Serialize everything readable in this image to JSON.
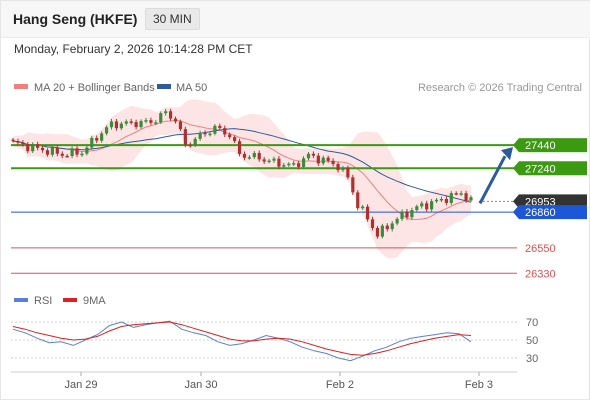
{
  "header": {
    "title": "Hang Seng (HKFE)",
    "timeframe": "30 MIN",
    "timestamp": "Monday, February 2, 2026 10:14:28 PM CET"
  },
  "legend": {
    "items": [
      {
        "label": "MA 20 + Bollinger Bands",
        "color": "#f08080"
      },
      {
        "label": "MA 50",
        "color": "#2e5b9a"
      }
    ],
    "credit": "Research © 2026 Trading Central"
  },
  "rsi_legend": {
    "items": [
      {
        "label": "RSI",
        "color": "#5b7fd6"
      },
      {
        "label": "9MA",
        "color": "#e02020"
      }
    ]
  },
  "chart_data": [
    {
      "type": "candlestick",
      "title": "Hang Seng (HKFE)",
      "y_range_approx": [
        26220,
        27840
      ],
      "x_ticks": [
        "Jan 29",
        "Jan 30",
        "Feb 2",
        "Feb 3"
      ],
      "levels": [
        {
          "value": 27440,
          "label": "27440",
          "kind": "resistance",
          "color": "#3c9a12"
        },
        {
          "value": 27240,
          "label": "27240",
          "kind": "resistance",
          "color": "#3c9a12"
        },
        {
          "value": 26953,
          "label": "26953",
          "kind": "last-price",
          "color": "#333333"
        },
        {
          "value": 26860,
          "label": "26860",
          "kind": "pivot",
          "color": "#1e56d8"
        },
        {
          "value": 26550,
          "label": "26550",
          "kind": "support",
          "color": "#e05050"
        },
        {
          "value": 26330,
          "label": "26330",
          "kind": "support",
          "color": "#e05050"
        }
      ],
      "price_path": [
        {
          "t": 0,
          "p": 27460
        },
        {
          "t": 6,
          "p": 27400
        },
        {
          "t": 10,
          "p": 27360
        },
        {
          "t": 14,
          "p": 27380
        },
        {
          "t": 18,
          "p": 27550
        },
        {
          "t": 20,
          "p": 27620
        },
        {
          "t": 24,
          "p": 27630
        },
        {
          "t": 28,
          "p": 27640
        },
        {
          "t": 31,
          "p": 27720
        },
        {
          "t": 33,
          "p": 27660
        },
        {
          "t": 35,
          "p": 27440
        },
        {
          "t": 38,
          "p": 27520
        },
        {
          "t": 41,
          "p": 27590
        },
        {
          "t": 44,
          "p": 27530
        },
        {
          "t": 46,
          "p": 27360
        },
        {
          "t": 50,
          "p": 27330
        },
        {
          "t": 53,
          "p": 27290
        },
        {
          "t": 57,
          "p": 27260
        },
        {
          "t": 60,
          "p": 27350
        },
        {
          "t": 63,
          "p": 27310
        },
        {
          "t": 66,
          "p": 27260
        },
        {
          "t": 68,
          "p": 27160
        },
        {
          "t": 70,
          "p": 26920
        },
        {
          "t": 72,
          "p": 26810
        },
        {
          "t": 74,
          "p": 26660
        },
        {
          "t": 76,
          "p": 26740
        },
        {
          "t": 79,
          "p": 26830
        },
        {
          "t": 82,
          "p": 26900
        },
        {
          "t": 85,
          "p": 26940
        },
        {
          "t": 88,
          "p": 26980
        },
        {
          "t": 91,
          "p": 27030
        },
        {
          "t": 93,
          "p": 26953
        }
      ],
      "indicators": [
        "MA 20 + Bollinger Bands",
        "MA 50"
      ],
      "forecast_arrow": {
        "direction": "up",
        "from": 26953,
        "to": 27440
      }
    },
    {
      "type": "line",
      "title": "RSI",
      "y_ticks": [
        70,
        50,
        30
      ],
      "series": [
        {
          "name": "RSI",
          "color": "#5b7fd6",
          "values": [
            62,
            58,
            52,
            47,
            48,
            44,
            50,
            56,
            66,
            70,
            64,
            67,
            69,
            71,
            62,
            58,
            55,
            48,
            44,
            46,
            50,
            55,
            52,
            48,
            42,
            38,
            35,
            30,
            27,
            32,
            38,
            42,
            48,
            52,
            54,
            56,
            58,
            57,
            48
          ]
        },
        {
          "name": "9MA",
          "color": "#e02020",
          "values": [
            65,
            62,
            58,
            55,
            52,
            50,
            51,
            54,
            60,
            65,
            67,
            68,
            69,
            70,
            67,
            63,
            59,
            55,
            51,
            49,
            49,
            51,
            52,
            51,
            48,
            44,
            40,
            37,
            34,
            33,
            35,
            38,
            42,
            46,
            49,
            52,
            54,
            56,
            55
          ]
        }
      ]
    }
  ]
}
